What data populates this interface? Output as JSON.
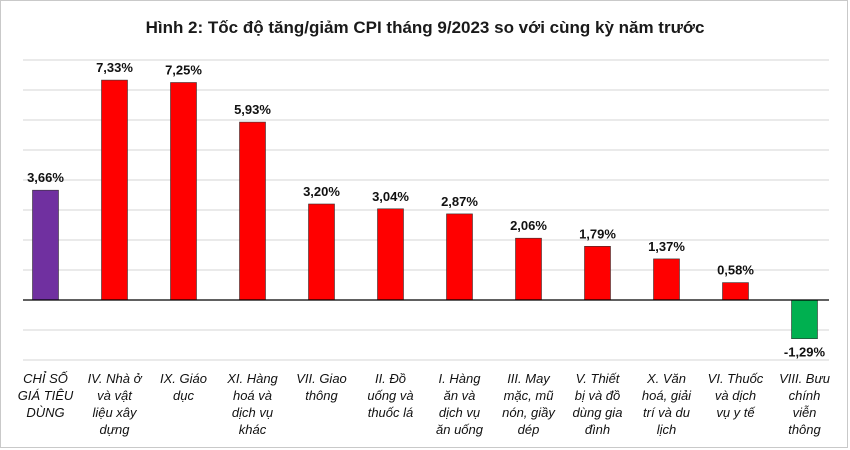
{
  "chart_data": {
    "type": "bar",
    "title": "Hình 2: Tốc độ tăng/giảm CPI tháng 9/2023 so với cùng kỳ năm trước",
    "categories": [
      [
        "CHỈ SỐ",
        "GIÁ TIÊU",
        "DÙNG"
      ],
      [
        "IV. Nhà ở",
        "và vật",
        "liệu xây",
        "dựng"
      ],
      [
        "IX. Giáo",
        "dục"
      ],
      [
        "XI. Hàng",
        "hoá và",
        "dịch vụ",
        "khác"
      ],
      [
        "VII. Giao",
        "thông"
      ],
      [
        "II. Đồ",
        "uống và",
        "thuốc lá"
      ],
      [
        "I. Hàng",
        "ăn và",
        "dịch vụ",
        "ăn uống"
      ],
      [
        "III. May",
        "mặc, mũ",
        "nón, giầy",
        "dép"
      ],
      [
        "V. Thiết",
        "bị và đồ",
        "dùng gia",
        "đình"
      ],
      [
        "X. Văn",
        "hoá, giải",
        "trí và du",
        "lịch"
      ],
      [
        "VI. Thuốc",
        "và dịch",
        "vụ y tế"
      ],
      [
        "VIII. Bưu",
        "chính",
        "viễn",
        "thông"
      ]
    ],
    "values": [
      3.66,
      7.33,
      7.25,
      5.93,
      3.2,
      3.04,
      2.87,
      2.06,
      1.79,
      1.37,
      0.58,
      -1.29
    ],
    "value_labels": [
      "3,66%",
      "7,33%",
      "7,25%",
      "5,93%",
      "3,20%",
      "3,04%",
      "2,87%",
      "2,06%",
      "1,79%",
      "1,37%",
      "0,58%",
      "-1,29%"
    ],
    "colors": [
      "#7030A0",
      "#FF0000",
      "#FF0000",
      "#FF0000",
      "#FF0000",
      "#FF0000",
      "#FF0000",
      "#FF0000",
      "#FF0000",
      "#FF0000",
      "#FF0000",
      "#00B050"
    ],
    "ylim": [
      -2,
      8
    ],
    "grid": true,
    "xlabel": "",
    "ylabel": ""
  }
}
